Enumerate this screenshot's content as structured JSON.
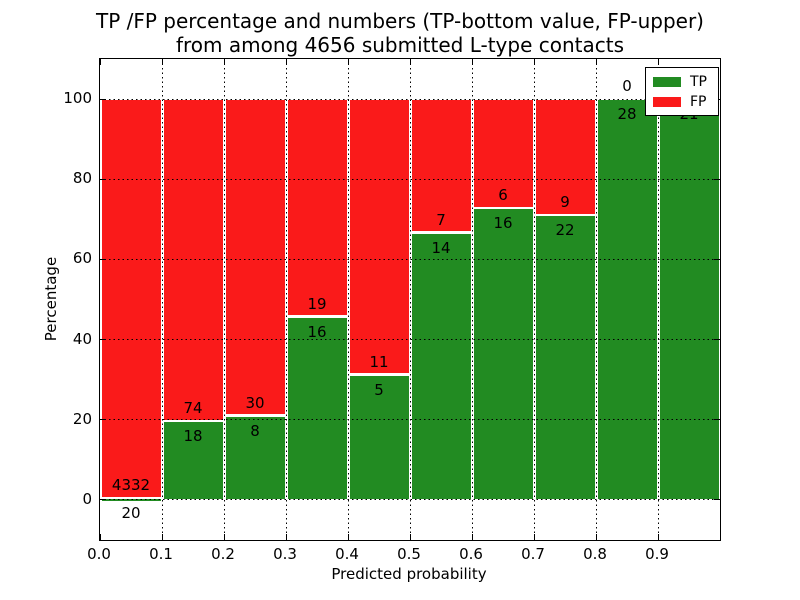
{
  "title": {
    "line1": "TP /FP percentage and numbers (TP-bottom value, FP-upper)",
    "line2": "from among 4656 submitted L-type contacts"
  },
  "axes": {
    "xlabel": "Predicted probability",
    "ylabel": "Percentage",
    "xticks": [
      "0.0",
      "0.1",
      "0.2",
      "0.3",
      "0.4",
      "0.5",
      "0.6",
      "0.7",
      "0.8",
      "0.9"
    ],
    "yticks": [
      "0",
      "20",
      "40",
      "60",
      "80",
      "100"
    ]
  },
  "legend": {
    "items": [
      {
        "label": "TP",
        "color": "#228b22"
      },
      {
        "label": "FP",
        "color": "#fa1a1a"
      }
    ]
  },
  "chart_data": {
    "type": "bar",
    "stacked": true,
    "normalized": "percent_of_bin_total",
    "title": "TP /FP percentage and numbers (TP-bottom value, FP-upper) from among 4656 submitted L-type contacts",
    "xlabel": "Predicted probability",
    "ylabel": "Percentage",
    "xlim": [
      0.0,
      1.0
    ],
    "ylim": [
      -10,
      110
    ],
    "bin_width": 0.1,
    "grid": "dotted",
    "legend_position": "upper right",
    "total_contacts": 4656,
    "colors": {
      "tp": "#228b22",
      "fp": "#fa1a1a"
    },
    "bins": [
      {
        "x_start": 0.0,
        "x_end": 0.1,
        "tp": 20,
        "fp": 4332,
        "tp_label": "20",
        "fp_label": "4332"
      },
      {
        "x_start": 0.1,
        "x_end": 0.2,
        "tp": 18,
        "fp": 74,
        "tp_label": "18",
        "fp_label": "74"
      },
      {
        "x_start": 0.2,
        "x_end": 0.3,
        "tp": 8,
        "fp": 30,
        "tp_label": "8",
        "fp_label": "30"
      },
      {
        "x_start": 0.3,
        "x_end": 0.4,
        "tp": 16,
        "fp": 19,
        "tp_label": "16",
        "fp_label": "19"
      },
      {
        "x_start": 0.4,
        "x_end": 0.5,
        "tp": 5,
        "fp": 11,
        "tp_label": "5",
        "fp_label": "11"
      },
      {
        "x_start": 0.5,
        "x_end": 0.6,
        "tp": 14,
        "fp": 7,
        "tp_label": "14",
        "fp_label": "7"
      },
      {
        "x_start": 0.6,
        "x_end": 0.7,
        "tp": 16,
        "fp": 6,
        "tp_label": "16",
        "fp_label": "6"
      },
      {
        "x_start": 0.7,
        "x_end": 0.8,
        "tp": 22,
        "fp": 9,
        "tp_label": "22",
        "fp_label": "9"
      },
      {
        "x_start": 0.8,
        "x_end": 0.9,
        "tp": 28,
        "fp": 0,
        "tp_label": "28",
        "fp_label": "0"
      },
      {
        "x_start": 0.9,
        "x_end": 1.0,
        "tp": 21,
        "fp": 0,
        "tp_label": "21",
        "fp_label": null
      }
    ],
    "series": [
      {
        "name": "TP",
        "values": [
          20,
          18,
          8,
          16,
          5,
          14,
          16,
          22,
          28,
          21
        ]
      },
      {
        "name": "FP",
        "values": [
          4332,
          74,
          30,
          19,
          11,
          7,
          6,
          9,
          0,
          0
        ]
      }
    ]
  }
}
